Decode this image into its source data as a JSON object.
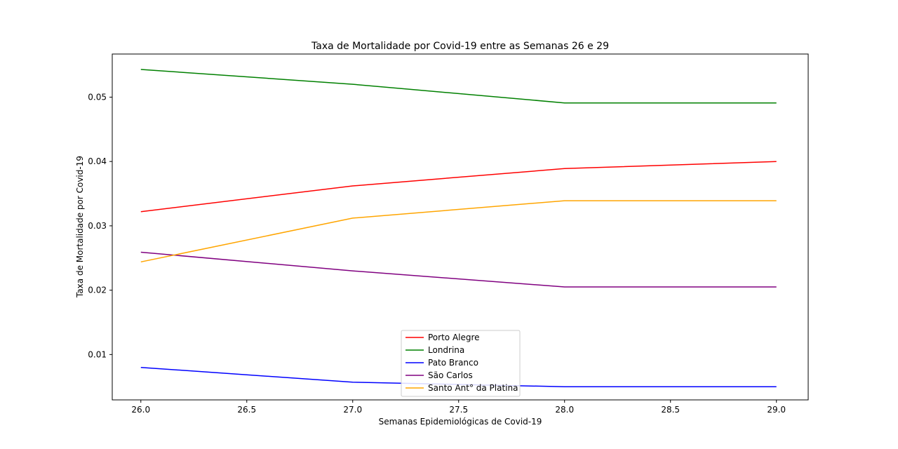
{
  "chart_data": {
    "type": "line",
    "title": "Taxa de Mortalidade por Covid-19 entre as Semanas 26 e 29",
    "xlabel": "Semanas Epidemiológicas de Covid-19",
    "ylabel": "Taxa de Mortalidade por Covid-19",
    "x": [
      26,
      27,
      28,
      29
    ],
    "xlim": [
      25.865,
      29.15
    ],
    "ylim": [
      0.00295,
      0.0567
    ],
    "x_ticks": [
      26.0,
      26.5,
      27.0,
      27.5,
      28.0,
      28.5,
      29.0
    ],
    "x_tick_labels": [
      "26.0",
      "26.5",
      "27.0",
      "27.5",
      "28.0",
      "28.5",
      "29.0"
    ],
    "y_ticks": [
      0.01,
      0.02,
      0.03,
      0.04,
      0.05
    ],
    "y_tick_labels": [
      "0.01",
      "0.02",
      "0.03",
      "0.04",
      "0.05"
    ],
    "grid": false,
    "legend_position": "lower-center",
    "series": [
      {
        "name": "Porto Alegre",
        "color": "#ff0000",
        "values": [
          0.0322,
          0.0362,
          0.0389,
          0.04
        ]
      },
      {
        "name": "Londrina",
        "color": "#008000",
        "values": [
          0.0543,
          0.052,
          0.0491,
          0.0491
        ]
      },
      {
        "name": "Pato Branco",
        "color": "#0000ff",
        "values": [
          0.008,
          0.0057,
          0.005,
          0.005
        ]
      },
      {
        "name": "São Carlos",
        "color": "#800080",
        "values": [
          0.0259,
          0.023,
          0.0205,
          0.0205
        ]
      },
      {
        "name": "Santo Ant° da Platina",
        "color": "#ffa500",
        "values": [
          0.0244,
          0.0312,
          0.0339,
          0.0339
        ]
      }
    ]
  }
}
